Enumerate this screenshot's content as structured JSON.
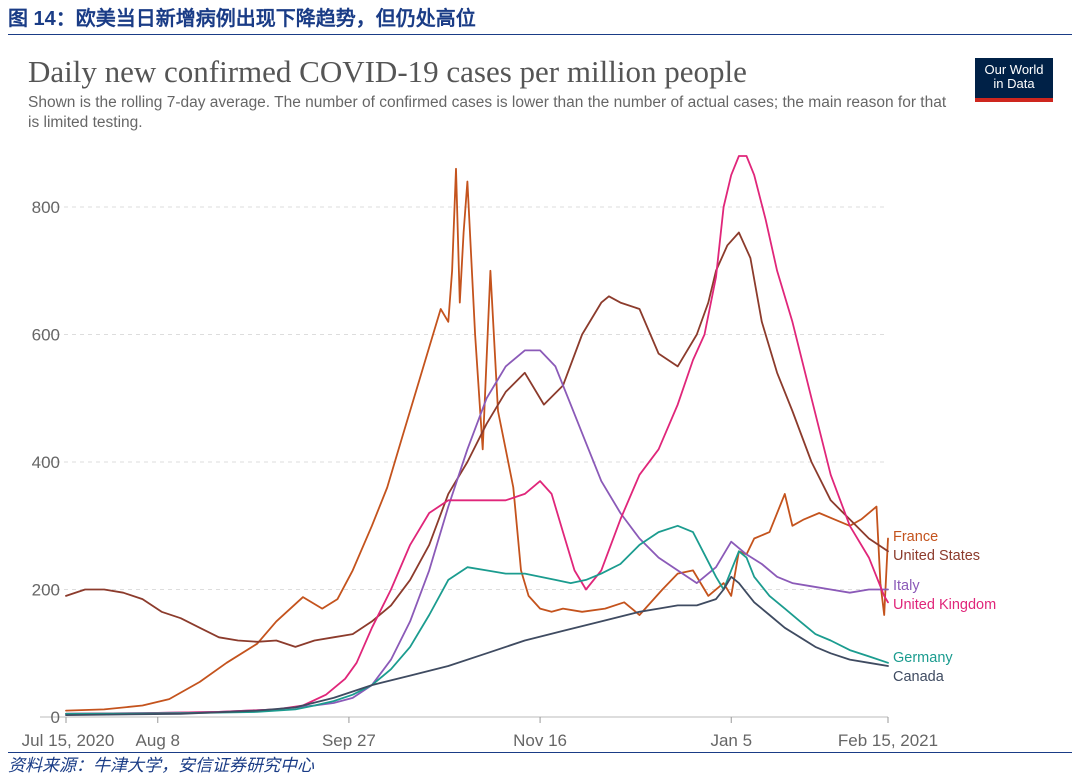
{
  "caption": "图 14：欧美当日新增病例出现下降趋势，但仍处高位",
  "source": "资料来源：牛津大学，安信证券研究中心",
  "logo": {
    "line1": "Our World",
    "line2": "in Data"
  },
  "chart_data": {
    "type": "line",
    "title": "Daily new confirmed COVID-19 cases per million people",
    "subtitle": "Shown is the rolling 7-day average. The number of confirmed cases is lower than the number of actual cases; the main reason for that is limited testing.",
    "xlabel": "",
    "ylabel": "",
    "ylim": [
      0,
      880
    ],
    "yticks": [
      0,
      200,
      400,
      600,
      800
    ],
    "ytick_labels": [
      "0",
      "200",
      "400",
      "600",
      "800"
    ],
    "xlim": [
      0,
      215
    ],
    "xticks": [
      {
        "day": 0,
        "label": "Jul 15, 2020"
      },
      {
        "day": 24,
        "label": "Aug 8"
      },
      {
        "day": 74,
        "label": "Sep 27"
      },
      {
        "day": 124,
        "label": "Nov 16"
      },
      {
        "day": 174,
        "label": "Jan 5"
      },
      {
        "day": 215,
        "label": "Feb 15, 2021"
      }
    ],
    "grid": true,
    "series": [
      {
        "name": "France",
        "color": "#c4531d",
        "x": [
          0,
          10,
          20,
          27,
          35,
          42,
          50,
          55,
          62,
          67,
          71,
          75,
          80,
          84,
          88,
          91,
          95,
          98,
          100,
          101,
          102,
          103,
          104,
          105,
          107,
          109,
          111,
          113,
          115,
          117,
          119,
          121,
          124,
          127,
          130,
          135,
          141,
          146,
          150,
          156,
          160,
          164,
          168,
          172,
          174,
          176,
          178,
          180,
          184,
          188,
          190,
          193,
          197,
          201,
          205,
          208,
          212,
          213,
          214,
          215
        ],
        "y": [
          10,
          12,
          18,
          28,
          55,
          85,
          115,
          150,
          188,
          170,
          185,
          230,
          300,
          360,
          440,
          500,
          580,
          640,
          620,
          700,
          860,
          650,
          760,
          840,
          600,
          420,
          700,
          480,
          420,
          360,
          230,
          190,
          170,
          165,
          170,
          165,
          170,
          180,
          160,
          200,
          225,
          230,
          190,
          210,
          190,
          260,
          255,
          280,
          290,
          350,
          300,
          310,
          320,
          310,
          300,
          310,
          330,
          210,
          160,
          280
        ]
      },
      {
        "name": "United States",
        "color": "#8c3b2c",
        "x": [
          0,
          5,
          10,
          15,
          20,
          25,
          30,
          35,
          40,
          45,
          50,
          55,
          60,
          65,
          70,
          75,
          80,
          85,
          90,
          95,
          100,
          105,
          110,
          115,
          120,
          125,
          130,
          135,
          140,
          142,
          145,
          150,
          155,
          160,
          165,
          168,
          170,
          173,
          176,
          179,
          182,
          186,
          190,
          195,
          200,
          205,
          210,
          215
        ],
        "y": [
          190,
          200,
          200,
          195,
          185,
          165,
          155,
          140,
          125,
          120,
          118,
          120,
          110,
          120,
          125,
          130,
          150,
          175,
          215,
          270,
          350,
          400,
          460,
          510,
          540,
          490,
          520,
          600,
          650,
          660,
          650,
          640,
          570,
          550,
          600,
          650,
          700,
          740,
          760,
          720,
          620,
          540,
          480,
          400,
          340,
          310,
          280,
          260
        ]
      },
      {
        "name": "Italy",
        "color": "#8b5ab8",
        "x": [
          0,
          20,
          40,
          55,
          65,
          70,
          75,
          80,
          85,
          90,
          95,
          100,
          105,
          110,
          115,
          120,
          124,
          128,
          132,
          136,
          140,
          145,
          150,
          155,
          160,
          165,
          170,
          174,
          178,
          182,
          186,
          190,
          195,
          200,
          205,
          210,
          215
        ],
        "y": [
          5,
          6,
          8,
          12,
          18,
          22,
          30,
          50,
          90,
          150,
          230,
          330,
          420,
          500,
          550,
          575,
          575,
          550,
          490,
          430,
          370,
          320,
          280,
          250,
          230,
          210,
          235,
          275,
          255,
          240,
          220,
          210,
          205,
          200,
          195,
          200,
          200
        ]
      },
      {
        "name": "United Kingdom",
        "color": "#e0267a",
        "x": [
          0,
          20,
          40,
          55,
          62,
          68,
          73,
          76,
          80,
          85,
          90,
          95,
          100,
          105,
          110,
          115,
          120,
          124,
          127,
          130,
          133,
          136,
          140,
          145,
          150,
          155,
          160,
          164,
          167,
          170,
          172,
          174,
          176,
          178,
          180,
          183,
          186,
          190,
          195,
          200,
          205,
          210,
          214,
          215
        ],
        "y": [
          5,
          6,
          8,
          12,
          18,
          35,
          60,
          85,
          140,
          200,
          270,
          320,
          340,
          340,
          340,
          340,
          350,
          370,
          350,
          290,
          230,
          200,
          230,
          310,
          380,
          420,
          490,
          560,
          600,
          690,
          800,
          850,
          880,
          880,
          850,
          780,
          700,
          620,
          500,
          380,
          300,
          250,
          190,
          180
        ]
      },
      {
        "name": "Germany",
        "color": "#1b9c8f",
        "x": [
          0,
          30,
          50,
          60,
          65,
          70,
          75,
          80,
          85,
          90,
          95,
          100,
          105,
          110,
          115,
          120,
          124,
          128,
          132,
          136,
          140,
          145,
          150,
          155,
          160,
          164,
          167,
          170,
          172,
          174,
          176,
          178,
          180,
          184,
          188,
          192,
          196,
          200,
          205,
          210,
          215
        ],
        "y": [
          5,
          6,
          8,
          12,
          18,
          25,
          35,
          50,
          75,
          110,
          160,
          215,
          235,
          230,
          225,
          225,
          220,
          215,
          210,
          215,
          225,
          240,
          270,
          290,
          300,
          290,
          255,
          220,
          200,
          230,
          260,
          250,
          220,
          190,
          170,
          150,
          130,
          120,
          105,
          95,
          85
        ]
      },
      {
        "name": "Canada",
        "color": "#3f4b61",
        "x": [
          0,
          30,
          50,
          60,
          70,
          80,
          90,
          100,
          110,
          120,
          130,
          140,
          150,
          155,
          160,
          165,
          170,
          172,
          174,
          176,
          178,
          180,
          184,
          188,
          192,
          196,
          200,
          205,
          210,
          215
        ],
        "y": [
          3,
          5,
          10,
          15,
          30,
          50,
          65,
          80,
          100,
          120,
          135,
          150,
          165,
          170,
          175,
          175,
          185,
          200,
          220,
          210,
          195,
          180,
          160,
          140,
          125,
          110,
          100,
          90,
          85,
          80
        ]
      }
    ],
    "series_label_order": [
      "France",
      "United States",
      "Italy",
      "United Kingdom",
      "Germany",
      "Canada"
    ]
  }
}
